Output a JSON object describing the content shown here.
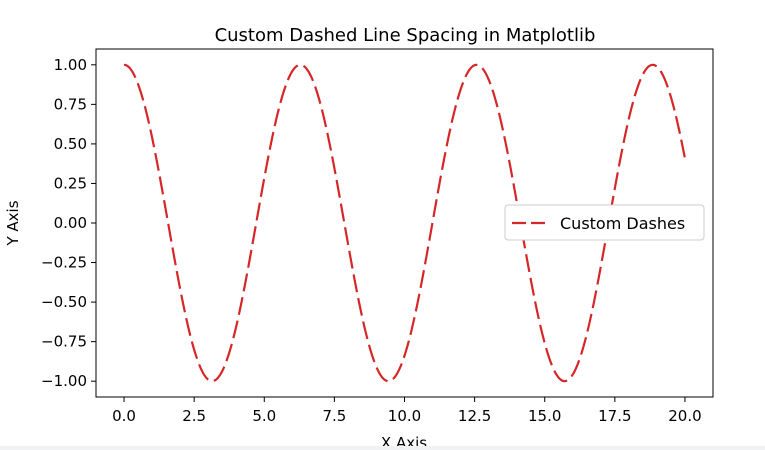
{
  "chart_data": {
    "type": "line",
    "title": "Custom Dashed Line Spacing in Matplotlib",
    "xlabel": "X Axis",
    "ylabel": "Y Axis",
    "xlim": [
      -1.0,
      21.0
    ],
    "ylim": [
      -1.1,
      1.1
    ],
    "xticks": [
      0.0,
      2.5,
      5.0,
      7.5,
      10.0,
      12.5,
      15.0,
      17.5,
      20.0
    ],
    "xtick_labels": [
      "0.0",
      "2.5",
      "5.0",
      "7.5",
      "10.0",
      "12.5",
      "15.0",
      "17.5",
      "20.0"
    ],
    "yticks": [
      1.0,
      0.75,
      0.5,
      0.25,
      0.0,
      -0.25,
      -0.5,
      -0.75,
      -1.0
    ],
    "ytick_labels": [
      "1.00",
      "0.75",
      "0.50",
      "0.25",
      "0.00",
      "−0.25",
      "−0.50",
      "−0.75",
      "−1.00"
    ],
    "grid": false,
    "legend_position": "center-right",
    "series": [
      {
        "name": "Custom Dashes",
        "function": "cos(x)",
        "x_start": 0.0,
        "x_end": 20.0,
        "color": "#d62728",
        "line_style": "dashed"
      }
    ]
  }
}
